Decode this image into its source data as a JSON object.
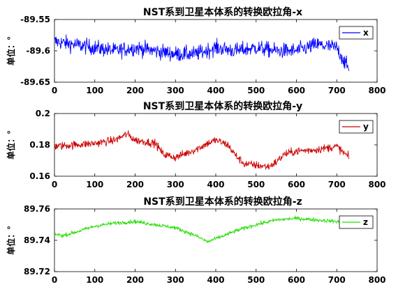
{
  "chart_data": [
    {
      "type": "line",
      "title": "NST系到卫星本体系的转换欧拉角-x",
      "xlabel": "",
      "ylabel": "单位：°",
      "xlim": [
        0,
        800
      ],
      "ylim": [
        -89.65,
        -89.55
      ],
      "xticks": [
        "0",
        "100",
        "200",
        "300",
        "400",
        "500",
        "600",
        "700",
        "800"
      ],
      "yticks": [
        "-89.55",
        "-89.6",
        "-89.65"
      ],
      "legend_position": "top-right",
      "color": "#0000ff",
      "series": [
        {
          "name": "x",
          "x": [
            0,
            50,
            100,
            150,
            200,
            250,
            300,
            350,
            400,
            450,
            500,
            550,
            600,
            650,
            700,
            730
          ],
          "values": [
            -89.585,
            -89.59,
            -89.595,
            -89.6,
            -89.595,
            -89.6,
            -89.605,
            -89.605,
            -89.595,
            -89.6,
            -89.595,
            -89.6,
            -89.6,
            -89.59,
            -89.595,
            -89.63
          ],
          "noise": 0.012
        }
      ]
    },
    {
      "type": "line",
      "title": "NST系到卫星本体系的转换欧拉角-y",
      "xlabel": "",
      "ylabel": "单位：°",
      "xlim": [
        0,
        800
      ],
      "ylim": [
        0.16,
        0.2
      ],
      "xticks": [
        "0",
        "100",
        "200",
        "300",
        "400",
        "500",
        "600",
        "700",
        "800"
      ],
      "yticks": [
        "0.2",
        "0.18",
        "0.16"
      ],
      "legend_position": "top-right",
      "color": "#cc0000",
      "series": [
        {
          "name": "y",
          "x": [
            0,
            50,
            100,
            150,
            180,
            200,
            250,
            270,
            300,
            350,
            380,
            400,
            430,
            450,
            470,
            500,
            530,
            550,
            570,
            600,
            650,
            700,
            730
          ],
          "values": [
            0.179,
            0.18,
            0.181,
            0.183,
            0.187,
            0.183,
            0.181,
            0.174,
            0.172,
            0.177,
            0.181,
            0.183,
            0.18,
            0.173,
            0.168,
            0.167,
            0.166,
            0.169,
            0.174,
            0.176,
            0.177,
            0.179,
            0.172
          ],
          "noise": 0.0025
        }
      ]
    },
    {
      "type": "line",
      "title": "NST系到卫星本体系的转换欧拉角-z",
      "xlabel": "",
      "ylabel": "单位：°",
      "xlim": [
        0,
        800
      ],
      "ylim": [
        89.72,
        89.76
      ],
      "xticks": [
        "0",
        "100",
        "200",
        "300",
        "400",
        "500",
        "600",
        "700",
        "800"
      ],
      "yticks": [
        "89.76",
        "89.74",
        "89.72"
      ],
      "legend_position": "top-right",
      "color": "#22dd00",
      "series": [
        {
          "name": "z",
          "x": [
            0,
            20,
            50,
            100,
            150,
            200,
            250,
            300,
            350,
            380,
            400,
            450,
            500,
            550,
            600,
            650,
            700,
            730
          ],
          "values": [
            89.744,
            89.743,
            89.745,
            89.749,
            89.751,
            89.752,
            89.75,
            89.748,
            89.743,
            89.739,
            89.741,
            89.746,
            89.75,
            89.753,
            89.754,
            89.753,
            89.752,
            89.751
          ],
          "noise": 0.0012
        }
      ]
    }
  ]
}
